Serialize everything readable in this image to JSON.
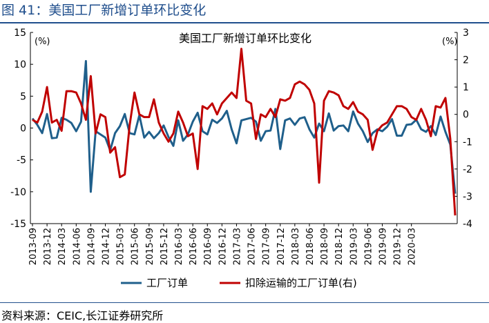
{
  "figure": {
    "title": "图 41：美国工厂新增订单环比变化",
    "source": "资料来源：CEIC,长江证券研究所"
  },
  "chart_data": {
    "type": "line",
    "title": "美国工厂新增订单环比变化",
    "left_unit": "(%)",
    "right_unit": "(%)",
    "ylim_left": [
      -15,
      15
    ],
    "yticks_left": [
      15,
      10,
      5,
      0,
      -5,
      -10,
      -15
    ],
    "ylim_right": [
      -4,
      3
    ],
    "yticks_right": [
      3,
      2,
      1,
      0,
      -1,
      -2,
      -3,
      -4
    ],
    "x_tick_labels": [
      "2013-09",
      "2013-12",
      "2014-03",
      "2014-06",
      "2014-09",
      "2014-12",
      "2015-03",
      "2015-06",
      "2015-09",
      "2015-12",
      "2016-03",
      "2016-06",
      "2016-09",
      "2016-12",
      "2017-03",
      "2017-06",
      "2017-09",
      "2017-12",
      "2018-03",
      "2018-06",
      "2018-09",
      "2018-12",
      "2019-03",
      "2019-06",
      "2019-09",
      "2019-12",
      "2020-03"
    ],
    "grid": false,
    "legend_position": "bottom",
    "colors": {
      "series1": "#1f5f8b",
      "series2": "#c00000"
    },
    "series": [
      {
        "name": "工厂订单",
        "axis": "left",
        "values": [
          1.5,
          0.5,
          -0.8,
          2.2,
          -1.6,
          -1.5,
          1.6,
          1.3,
          0.8,
          -0.5,
          1.0,
          10.5,
          -10.0,
          -0.5,
          -1.0,
          -1.5,
          -3.5,
          -0.8,
          0.3,
          2.2,
          -0.8,
          -1.0,
          2.0,
          -1.5,
          -0.6,
          -1.6,
          -0.8,
          0.4,
          -1.4,
          -2.8,
          1.2,
          -2.0,
          -1.0,
          1.0,
          2.4,
          -0.5,
          -1.0,
          1.3,
          0.8,
          1.5,
          2.7,
          -0.2,
          -2.4,
          1.2,
          1.4,
          1.6,
          1.0,
          -2.0,
          -0.5,
          -0.4,
          3.0,
          -3.3,
          1.2,
          1.5,
          0.5,
          1.5,
          1.7,
          -0.2,
          -1.5,
          0.7,
          -0.5,
          2.3,
          -0.4,
          0.3,
          0.4,
          -0.5,
          2.6,
          0.7,
          -0.5,
          -2.2,
          -0.8,
          -0.2,
          -0.5,
          0.2,
          1.4,
          -1.2,
          -1.2,
          0.5,
          0.6,
          1.3,
          -0.2,
          -0.6,
          0.3,
          -1.1,
          1.8,
          -0.6,
          -2.6,
          -10.3
        ]
      },
      {
        "name": "扣除运输的工厂订单(右)",
        "axis": "right",
        "values": [
          -0.2,
          -0.3,
          0.1,
          1.0,
          -0.3,
          -0.2,
          -0.6,
          0.85,
          0.85,
          0.8,
          0.4,
          -0.2,
          1.4,
          -0.7,
          0.0,
          -0.1,
          -1.4,
          -1.2,
          -2.3,
          -2.2,
          -0.4,
          0.8,
          0.0,
          -0.1,
          -0.1,
          0.55,
          -0.3,
          -0.7,
          -1.0,
          -0.7,
          0.1,
          -0.3,
          -0.8,
          -0.7,
          -2.0,
          0.3,
          0.2,
          0.4,
          0.0,
          0.4,
          0.6,
          0.8,
          0.6,
          2.4,
          0.5,
          0.4,
          -0.9,
          0.0,
          -0.1,
          0.2,
          -0.1,
          0.55,
          0.5,
          0.6,
          1.1,
          1.2,
          1.1,
          0.9,
          0.4,
          -2.5,
          0.5,
          0.85,
          0.8,
          0.7,
          0.3,
          0.2,
          0.45,
          0.1,
          0.0,
          -0.2,
          -1.3,
          -0.6,
          -0.4,
          -0.3,
          0.0,
          0.3,
          0.3,
          0.2,
          -0.1,
          -0.2,
          0.2,
          -0.2,
          -0.8,
          0.3,
          0.25,
          0.6,
          -0.9,
          -3.7
        ]
      }
    ]
  }
}
